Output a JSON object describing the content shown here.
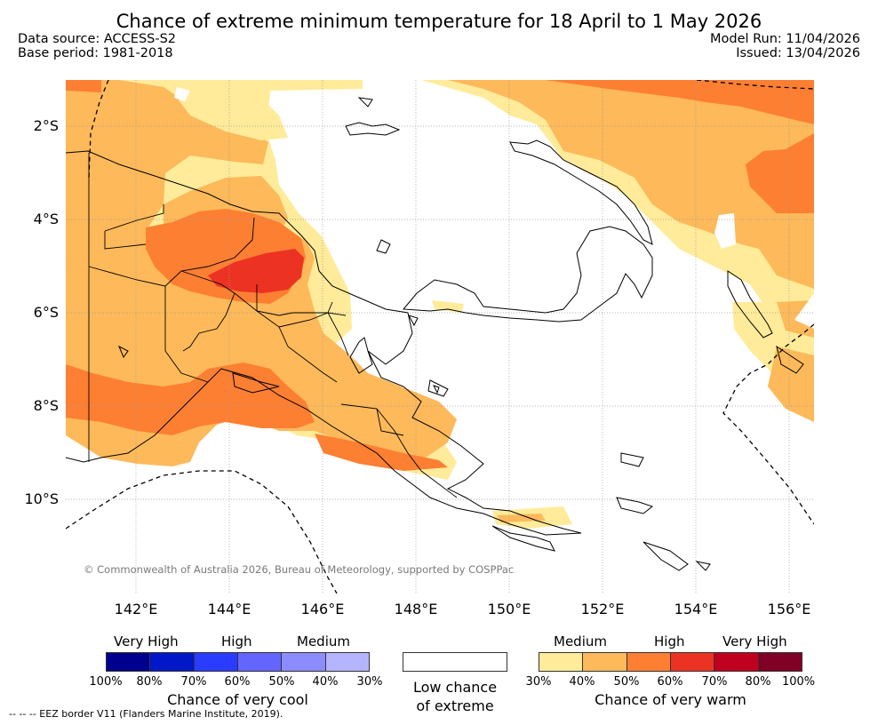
{
  "title": "Chance of extreme minimum temperature for 18 April to 1 May 2026",
  "meta": {
    "data_source": "Data source: ACCESS-S2",
    "base_period": "Base period: 1981-2018",
    "model_run": "Model Run: 11/04/2026",
    "issued": "Issued: 13/04/2026"
  },
  "map": {
    "lat_labels": [
      "2°S",
      "4°S",
      "6°S",
      "8°S",
      "10°S"
    ],
    "lon_labels": [
      "142°E",
      "144°E",
      "146°E",
      "148°E",
      "150°E",
      "152°E",
      "154°E",
      "156°E"
    ],
    "copyright": "© Commonwealth of Australia 2026, Bureau of Meteorology, supported by COSPPac",
    "colors": {
      "land_outline": "#000000",
      "grid": "#9a9a9a",
      "eez": "#000000"
    }
  },
  "legend": {
    "cool": {
      "headers": [
        "Very High",
        "High",
        "Medium"
      ],
      "ticks": [
        "100%",
        "80%",
        "70%",
        "60%",
        "50%",
        "40%",
        "30%"
      ],
      "colors": [
        "#00008f",
        "#0018c8",
        "#2a3cff",
        "#6464ff",
        "#8c8cff",
        "#b4b4ff"
      ],
      "label": "Chance of very cool"
    },
    "low": {
      "line1": "Low chance",
      "line2": "of extreme"
    },
    "warm": {
      "headers": [
        "Medium",
        "High",
        "Very High"
      ],
      "ticks": [
        "30%",
        "40%",
        "50%",
        "60%",
        "70%",
        "80%",
        "100%"
      ],
      "colors": [
        "#ffeb99",
        "#fdb95a",
        "#fd7f32",
        "#ec3323",
        "#c00020",
        "#800026"
      ],
      "label": "Chance of very warm"
    }
  },
  "footer": {
    "eez": "-- -- -- EEZ border V11 (Flanders Marine Institute, 2019)."
  }
}
